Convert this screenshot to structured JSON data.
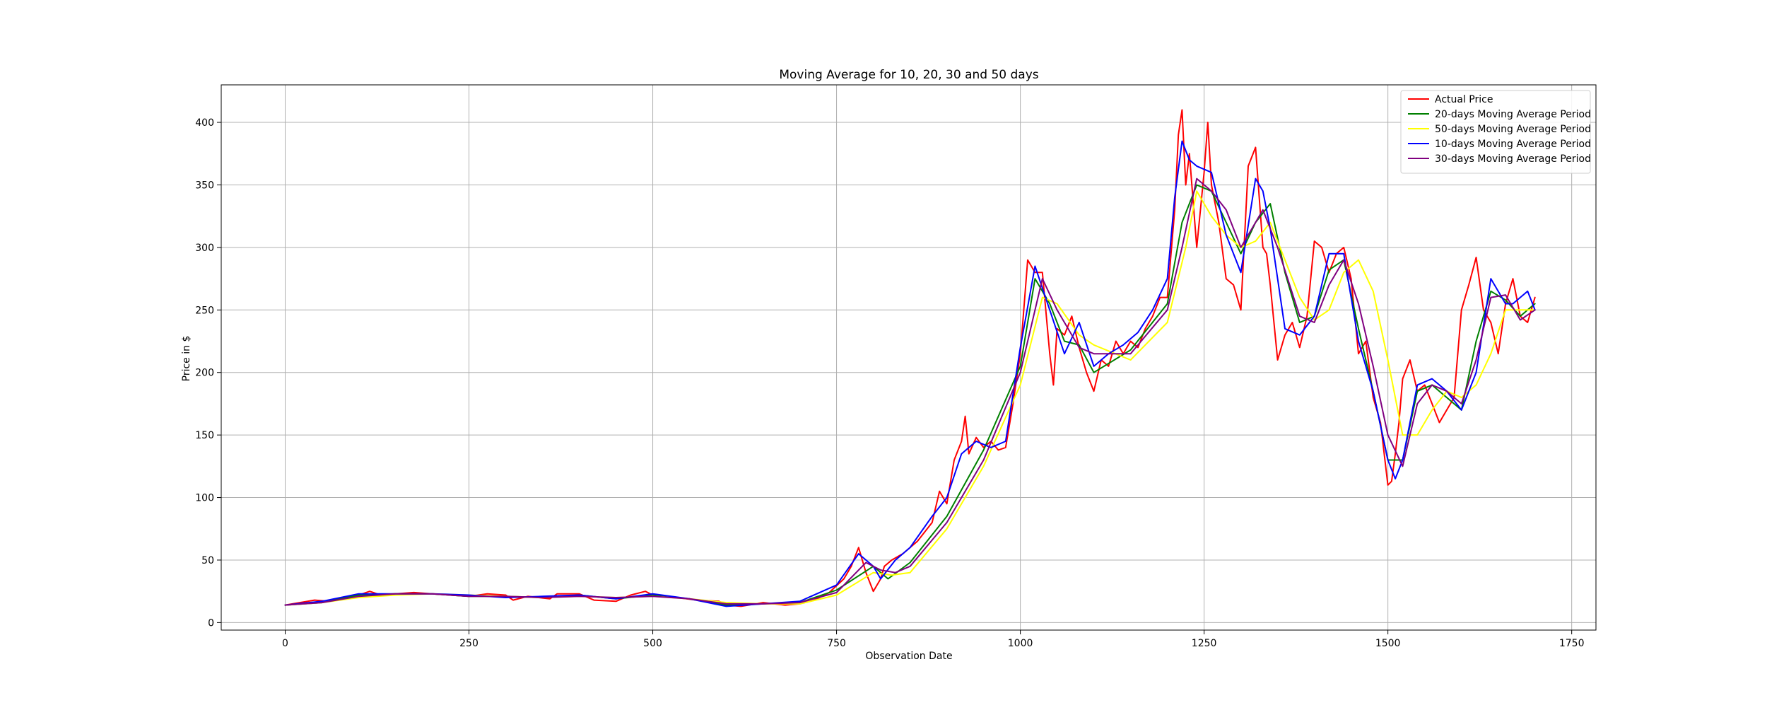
{
  "chart_data": {
    "type": "line",
    "title": "Moving Average for 10, 20, 30 and 50 days",
    "xlabel": "Observation Date",
    "ylabel": "Price in $",
    "xlim": [
      -87,
      1783
    ],
    "ylim": [
      -6,
      430
    ],
    "xticks": [
      0,
      250,
      500,
      750,
      1000,
      1250,
      1500,
      1750
    ],
    "yticks": [
      0,
      50,
      100,
      150,
      200,
      250,
      300,
      350,
      400
    ],
    "grid": true,
    "legend_position": "top-right",
    "series": [
      {
        "name": "Actual Price",
        "color": "#ff0000",
        "x": [
          0,
          20,
          40,
          60,
          80,
          100,
          115,
          130,
          150,
          175,
          200,
          225,
          250,
          275,
          300,
          310,
          330,
          360,
          370,
          400,
          420,
          450,
          470,
          490,
          500,
          520,
          560,
          590,
          600,
          620,
          650,
          680,
          700,
          720,
          740,
          760,
          770,
          780,
          785,
          790,
          800,
          810,
          815,
          825,
          840,
          860,
          880,
          890,
          900,
          910,
          920,
          925,
          930,
          940,
          950,
          960,
          970,
          980,
          990,
          1000,
          1010,
          1020,
          1030,
          1040,
          1045,
          1050,
          1060,
          1070,
          1080,
          1090,
          1100,
          1110,
          1120,
          1130,
          1140,
          1150,
          1160,
          1170,
          1180,
          1190,
          1200,
          1210,
          1215,
          1220,
          1225,
          1230,
          1240,
          1250,
          1255,
          1260,
          1270,
          1280,
          1290,
          1300,
          1310,
          1320,
          1330,
          1335,
          1340,
          1350,
          1360,
          1370,
          1380,
          1390,
          1400,
          1410,
          1420,
          1430,
          1440,
          1450,
          1460,
          1470,
          1480,
          1490,
          1500,
          1505,
          1510,
          1515,
          1520,
          1530,
          1540,
          1550,
          1560,
          1570,
          1580,
          1590,
          1600,
          1610,
          1620,
          1630,
          1640,
          1650,
          1660,
          1670,
          1680,
          1690,
          1700
        ],
        "values": [
          14,
          16,
          18,
          17,
          20,
          22,
          25,
          22,
          23,
          24,
          23,
          22,
          21,
          23,
          22,
          18,
          21,
          19,
          23,
          23,
          18,
          17,
          22,
          25,
          22,
          21,
          18,
          17,
          14,
          13,
          16,
          14,
          15,
          18,
          24,
          35,
          45,
          60,
          50,
          40,
          25,
          35,
          45,
          50,
          55,
          65,
          80,
          105,
          95,
          130,
          145,
          165,
          135,
          148,
          140,
          145,
          138,
          140,
          175,
          215,
          290,
          280,
          280,
          215,
          190,
          235,
          230,
          245,
          220,
          200,
          185,
          210,
          205,
          225,
          215,
          225,
          220,
          235,
          245,
          260,
          260,
          330,
          390,
          410,
          350,
          375,
          300,
          360,
          400,
          350,
          320,
          275,
          270,
          250,
          365,
          380,
          300,
          295,
          270,
          210,
          230,
          240,
          220,
          245,
          305,
          300,
          280,
          295,
          300,
          275,
          215,
          225,
          180,
          160,
          110,
          113,
          135,
          160,
          195,
          210,
          185,
          190,
          175,
          160,
          170,
          180,
          250,
          270,
          292,
          250,
          240,
          215,
          255,
          275,
          245,
          240,
          260
        ]
      },
      {
        "name": "20-days Moving Average Period",
        "color": "#008000",
        "x": [
          0,
          50,
          100,
          150,
          200,
          250,
          300,
          350,
          400,
          450,
          500,
          550,
          600,
          650,
          700,
          750,
          800,
          820,
          850,
          900,
          950,
          1000,
          1020,
          1040,
          1060,
          1080,
          1100,
          1150,
          1200,
          1220,
          1240,
          1260,
          1280,
          1300,
          1320,
          1340,
          1360,
          1380,
          1400,
          1420,
          1440,
          1460,
          1480,
          1500,
          1520,
          1540,
          1560,
          1580,
          1600,
          1620,
          1640,
          1660,
          1680,
          1700
        ],
        "values": [
          14,
          16,
          22,
          23,
          23,
          21,
          21,
          20,
          22,
          19,
          22,
          19,
          14,
          15,
          16,
          26,
          45,
          35,
          48,
          85,
          138,
          205,
          275,
          255,
          225,
          222,
          200,
          218,
          255,
          320,
          350,
          345,
          320,
          295,
          320,
          335,
          280,
          240,
          245,
          282,
          290,
          235,
          185,
          130,
          130,
          185,
          190,
          180,
          170,
          225,
          265,
          258,
          245,
          255
        ]
      },
      {
        "name": "50-days Moving Average Period",
        "color": "#ffff00",
        "x": [
          0,
          50,
          100,
          150,
          200,
          250,
          300,
          350,
          400,
          450,
          500,
          550,
          600,
          650,
          700,
          750,
          800,
          825,
          850,
          900,
          950,
          1000,
          1030,
          1050,
          1080,
          1100,
          1150,
          1200,
          1225,
          1240,
          1260,
          1280,
          1300,
          1320,
          1340,
          1360,
          1380,
          1400,
          1420,
          1440,
          1460,
          1480,
          1500,
          1520,
          1540,
          1560,
          1580,
          1600,
          1620,
          1640,
          1660,
          1680,
          1700
        ],
        "values": [
          14,
          16,
          20,
          22,
          23,
          22,
          21,
          20,
          21,
          20,
          21,
          19,
          16,
          15,
          15,
          22,
          40,
          38,
          40,
          75,
          125,
          190,
          260,
          255,
          230,
          222,
          210,
          240,
          300,
          345,
          325,
          310,
          300,
          305,
          320,
          290,
          260,
          242,
          250,
          280,
          290,
          265,
          210,
          150,
          150,
          170,
          185,
          180,
          190,
          215,
          250,
          250,
          250
        ]
      },
      {
        "name": "10-days Moving Average Period",
        "color": "#0000ff",
        "x": [
          0,
          50,
          100,
          150,
          200,
          250,
          300,
          350,
          400,
          450,
          500,
          550,
          600,
          650,
          700,
          750,
          780,
          800,
          810,
          830,
          850,
          880,
          900,
          920,
          940,
          960,
          980,
          1000,
          1020,
          1040,
          1060,
          1080,
          1100,
          1120,
          1140,
          1160,
          1180,
          1200,
          1210,
          1220,
          1230,
          1240,
          1260,
          1280,
          1300,
          1320,
          1330,
          1340,
          1360,
          1380,
          1400,
          1420,
          1440,
          1460,
          1480,
          1500,
          1510,
          1520,
          1540,
          1560,
          1580,
          1600,
          1620,
          1640,
          1660,
          1670,
          1680,
          1690,
          1700
        ],
        "values": [
          14,
          17,
          23,
          23,
          23,
          22,
          20,
          21,
          22,
          19,
          23,
          19,
          13,
          15,
          17,
          30,
          55,
          45,
          35,
          50,
          60,
          85,
          100,
          135,
          145,
          140,
          145,
          220,
          285,
          250,
          215,
          240,
          205,
          215,
          222,
          232,
          250,
          275,
          340,
          385,
          370,
          365,
          360,
          310,
          280,
          355,
          345,
          315,
          235,
          230,
          245,
          295,
          295,
          225,
          185,
          130,
          115,
          130,
          190,
          195,
          185,
          170,
          200,
          275,
          255,
          255,
          260,
          265,
          250
        ]
      },
      {
        "name": "30-days Moving Average Period",
        "color": "#800080",
        "x": [
          0,
          50,
          100,
          150,
          200,
          250,
          300,
          350,
          400,
          450,
          500,
          550,
          600,
          650,
          700,
          750,
          790,
          810,
          830,
          850,
          900,
          950,
          1000,
          1030,
          1050,
          1080,
          1100,
          1150,
          1200,
          1220,
          1240,
          1260,
          1280,
          1300,
          1330,
          1350,
          1380,
          1400,
          1420,
          1440,
          1460,
          1480,
          1500,
          1520,
          1540,
          1560,
          1580,
          1600,
          1620,
          1640,
          1660,
          1680,
          1700
        ],
        "values": [
          14,
          16,
          21,
          23,
          23,
          21,
          21,
          20,
          21,
          20,
          21,
          19,
          15,
          15,
          16,
          24,
          48,
          42,
          40,
          45,
          80,
          130,
          200,
          275,
          250,
          220,
          215,
          215,
          250,
          300,
          355,
          345,
          330,
          300,
          330,
          300,
          245,
          240,
          270,
          290,
          255,
          205,
          150,
          125,
          175,
          190,
          185,
          175,
          210,
          260,
          262,
          242,
          250
        ]
      }
    ]
  }
}
